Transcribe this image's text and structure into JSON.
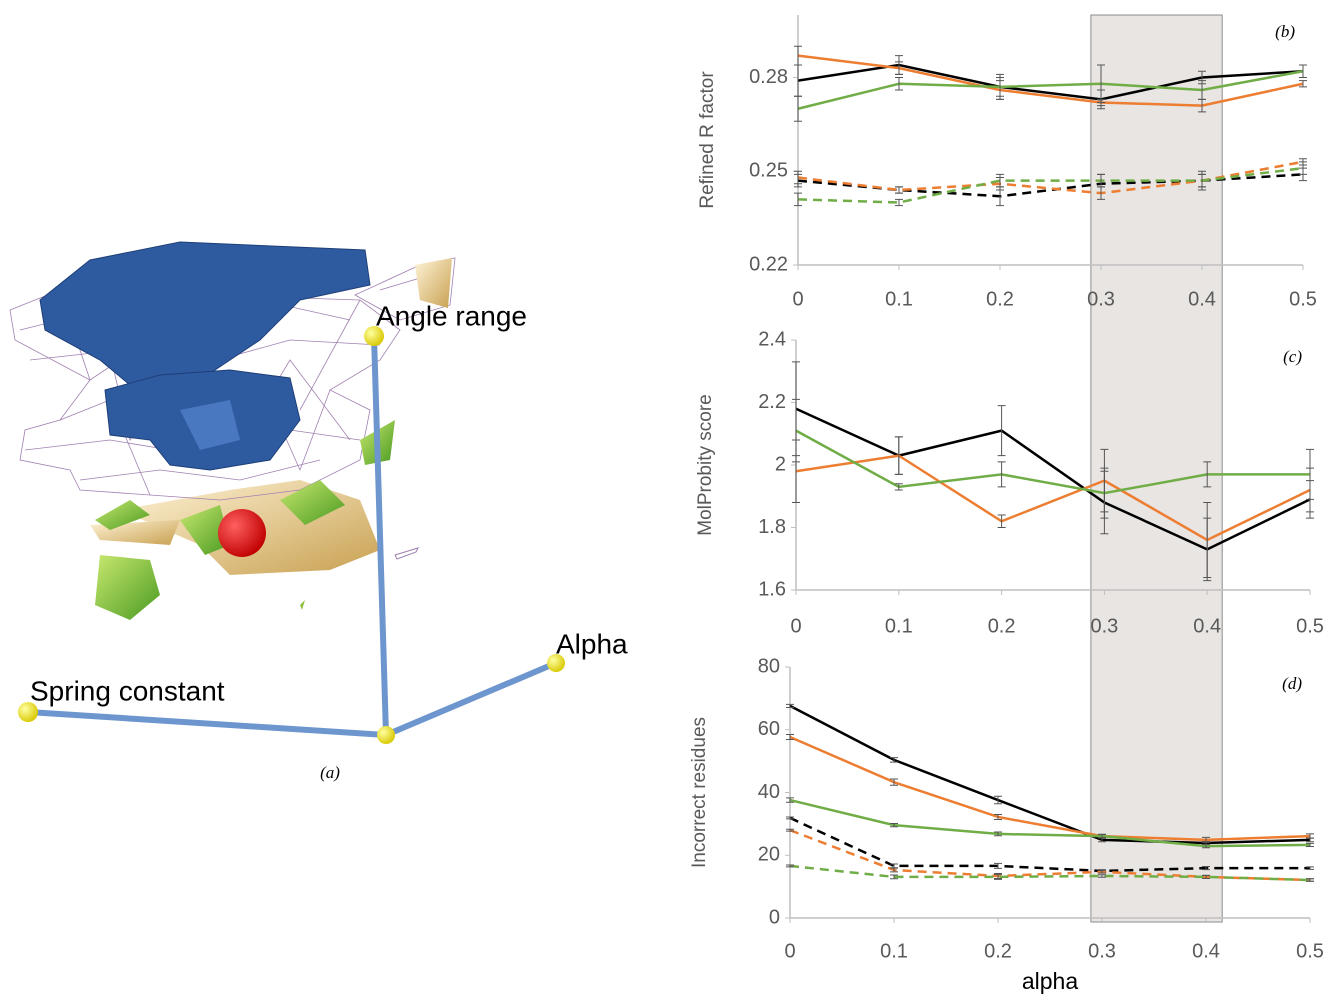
{
  "panel_a": {
    "axis_labels": [
      "Angle range",
      "Alpha",
      "Spring constant"
    ],
    "caption": "(a)"
  },
  "chart_data": [
    {
      "type": "line",
      "panel_label": "(b)",
      "y_label": "Refined R factor",
      "highlight_x": [
        0.29,
        0.42
      ],
      "x": [
        0,
        0.1,
        0.2,
        0.3,
        0.4,
        0.5
      ],
      "xlim": [
        0,
        0.5
      ],
      "xticks": [
        0,
        0.1,
        0.2,
        0.3,
        0.4,
        0.5
      ],
      "ylim": [
        0.22,
        0.3
      ],
      "yticks": [
        0.22,
        0.25,
        0.28
      ],
      "series": [
        {
          "color": "#000000",
          "dashed": false,
          "values": [
            0.279,
            0.284,
            0.277,
            0.273,
            0.28,
            0.282
          ],
          "errors": [
            0.005,
            0.003,
            0.004,
            0.003,
            0.002,
            0.002
          ]
        },
        {
          "color": "#ed7d31",
          "dashed": false,
          "values": [
            0.287,
            0.283,
            0.276,
            0.272,
            0.271,
            0.278
          ],
          "errors": [
            0.003,
            0.002,
            0.003,
            0.001,
            0.002,
            0.001
          ]
        },
        {
          "color": "#70ad47",
          "dashed": false,
          "values": [
            0.27,
            0.278,
            0.277,
            0.278,
            0.276,
            0.282
          ],
          "errors": [
            0.004,
            0.002,
            0.003,
            0.006,
            0.003,
            0.002
          ]
        },
        {
          "color": "#000000",
          "dashed": true,
          "values": [
            0.247,
            0.244,
            0.242,
            0.246,
            0.247,
            0.249
          ],
          "errors": [
            0.002,
            0.001,
            0.003,
            0.003,
            0.002,
            0.002
          ]
        },
        {
          "color": "#ed7d31",
          "dashed": true,
          "values": [
            0.248,
            0.244,
            0.246,
            0.243,
            0.247,
            0.253
          ],
          "errors": [
            0.002,
            0.001,
            0.002,
            0.002,
            0.003,
            0.001
          ]
        },
        {
          "color": "#70ad47",
          "dashed": true,
          "values": [
            0.241,
            0.24,
            0.247,
            0.247,
            0.247,
            0.251
          ],
          "errors": [
            0.002,
            0.001,
            0.002,
            0.002,
            0.002,
            0.002
          ]
        }
      ]
    },
    {
      "type": "line",
      "panel_label": "(c)",
      "y_label": "MolProbity score",
      "x": [
        0,
        0.1,
        0.2,
        0.3,
        0.4,
        0.5
      ],
      "xlim": [
        0,
        0.5
      ],
      "xticks": [
        0,
        0.1,
        0.2,
        0.3,
        0.4,
        0.5
      ],
      "ylim": [
        1.6,
        2.4
      ],
      "yticks": [
        1.6,
        1.8,
        2,
        2.2,
        2.4
      ],
      "series": [
        {
          "color": "#000000",
          "dashed": false,
          "values": [
            2.18,
            2.03,
            2.11,
            1.88,
            1.73,
            1.89
          ],
          "errors": [
            0.15,
            0.06,
            0.08,
            0.1,
            0.1,
            0.06
          ]
        },
        {
          "color": "#ed7d31",
          "dashed": false,
          "values": [
            1.98,
            2.03,
            1.82,
            1.95,
            1.76,
            1.92
          ],
          "errors": [
            0.1,
            0.06,
            0.02,
            0.1,
            0.12,
            0.07
          ]
        },
        {
          "color": "#70ad47",
          "dashed": false,
          "values": [
            2.11,
            1.93,
            1.97,
            1.91,
            1.97,
            1.97
          ],
          "errors": [
            0.1,
            0.01,
            0.04,
            0.08,
            0.04,
            0.08
          ]
        }
      ]
    },
    {
      "type": "line",
      "panel_label": "(d)",
      "y_label": "Incorrect residues",
      "x_label": "alpha",
      "x": [
        0,
        0.1,
        0.2,
        0.3,
        0.4,
        0.5
      ],
      "xlim": [
        0,
        0.5
      ],
      "xticks": [
        0,
        0.1,
        0.2,
        0.3,
        0.4,
        0.5
      ],
      "ylim": [
        0,
        80
      ],
      "yticks": [
        0,
        20,
        40,
        60,
        80
      ],
      "series": [
        {
          "color": "#000000",
          "dashed": false,
          "values": [
            67.6,
            50.4,
            37.6,
            24.9,
            23.9,
            24.9
          ],
          "errors": [
            0.5,
            0.7,
            1.2,
            0.6,
            0.6,
            0.6
          ]
        },
        {
          "color": "#ed7d31",
          "dashed": false,
          "values": [
            57.7,
            43.3,
            32.2,
            26.1,
            24.9,
            26.1
          ],
          "errors": [
            0.8,
            1,
            0.8,
            0.6,
            0.8,
            0.7
          ]
        },
        {
          "color": "#70ad47",
          "dashed": false,
          "values": [
            37.6,
            29.6,
            26.8,
            26.1,
            22.9,
            23.3
          ],
          "errors": [
            0.7,
            0.5,
            0.6,
            0.5,
            0.5,
            0.5
          ]
        },
        {
          "color": "#000000",
          "dashed": true,
          "values": [
            31.9,
            16.6,
            16.6,
            15,
            15.9,
            15.9
          ],
          "errors": [
            0.3,
            0.6,
            0.8,
            0.4,
            0.5,
            0.4
          ]
        },
        {
          "color": "#ed7d31",
          "dashed": true,
          "values": [
            28,
            15.3,
            13.4,
            14.7,
            13.1,
            12.1
          ],
          "errors": [
            0.3,
            0.6,
            0.8,
            0.4,
            0.5,
            0.4
          ]
        },
        {
          "color": "#70ad47",
          "dashed": true,
          "values": [
            16.6,
            13.1,
            13.1,
            13.4,
            13.1,
            12.1
          ],
          "errors": [
            0.3,
            0.6,
            0.8,
            0.4,
            0.5,
            0.4
          ]
        }
      ]
    }
  ]
}
